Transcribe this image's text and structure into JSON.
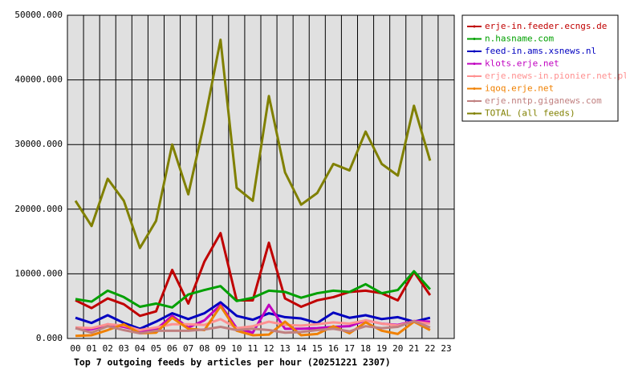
{
  "chart_data": {
    "type": "line",
    "title": "Top 7 outgoing feeds by articles per hour (20251221 2307)",
    "categories": [
      "00",
      "01",
      "02",
      "03",
      "04",
      "05",
      "06",
      "07",
      "08",
      "09",
      "10",
      "11",
      "12",
      "13",
      "14",
      "15",
      "16",
      "17",
      "18",
      "19",
      "20",
      "21",
      "22",
      "23"
    ],
    "ylim": [
      0,
      50000
    ],
    "yticks": [
      {
        "value": 0,
        "label": "0.000"
      },
      {
        "value": 10000,
        "label": "10000.000"
      },
      {
        "value": 20000,
        "label": "20000.000"
      },
      {
        "value": 30000,
        "label": "30000.000"
      },
      {
        "value": 40000,
        "label": "40000.000"
      },
      {
        "value": 50000,
        "label": "50000.000"
      }
    ],
    "grid": true,
    "legend": "right",
    "series": [
      {
        "name": "erje-in.feeder.ecngs.de",
        "color": "#c00000",
        "values": [
          5900,
          4700,
          6200,
          5300,
          3500,
          4200,
          10600,
          5400,
          11900,
          16300,
          5900,
          5900,
          14800,
          6200,
          4900,
          5900,
          6400,
          7200,
          7400,
          7000,
          5900,
          10300,
          6700,
          null
        ]
      },
      {
        "name": "n.hasname.com",
        "color": "#00a000",
        "values": [
          6100,
          5700,
          7400,
          6400,
          4900,
          5400,
          4800,
          6800,
          7500,
          8100,
          5800,
          6300,
          7400,
          7200,
          6300,
          7000,
          7400,
          7200,
          8400,
          7000,
          7500,
          10400,
          7600,
          null
        ]
      },
      {
        "name": "feed-in.ams.xsnews.nl",
        "color": "#0000c0",
        "values": [
          3200,
          2400,
          3600,
          2400,
          1500,
          2600,
          3900,
          3000,
          3900,
          5600,
          3500,
          2900,
          3900,
          3300,
          3100,
          2400,
          4000,
          3200,
          3600,
          3000,
          3300,
          2600,
          3200,
          null
        ]
      },
      {
        "name": "klots.erje.net",
        "color": "#c000c0",
        "values": [
          1600,
          1400,
          2200,
          1800,
          1200,
          1400,
          3500,
          1700,
          2800,
          5200,
          1600,
          900,
          5200,
          1500,
          1500,
          1600,
          1800,
          1900,
          2800,
          2300,
          2100,
          2700,
          2600,
          null
        ]
      },
      {
        "name": "erje.news-in.pionier.net.pl",
        "color": "#ff9090",
        "values": [
          1700,
          1600,
          2200,
          2000,
          1300,
          1700,
          2200,
          2200,
          2100,
          3000,
          1600,
          1900,
          2600,
          2100,
          2000,
          2200,
          2500,
          2300,
          2800,
          2300,
          2000,
          2600,
          2300,
          null
        ]
      },
      {
        "name": "iqoq.erje.net",
        "color": "#f08000",
        "values": [
          400,
          500,
          1300,
          2200,
          800,
          900,
          3200,
          1500,
          1300,
          5000,
          1200,
          500,
          600,
          2600,
          500,
          700,
          1900,
          800,
          2500,
          1200,
          700,
          2600,
          1300,
          null
        ]
      },
      {
        "name": "erje.nntp.giganews.com",
        "color": "#c08080",
        "values": [
          1600,
          900,
          1900,
          1300,
          800,
          1200,
          1200,
          1200,
          1400,
          1800,
          1300,
          1500,
          1300,
          900,
          1000,
          1300,
          1500,
          1100,
          1900,
          1600,
          1800,
          2700,
          1700,
          null
        ]
      },
      {
        "name": "TOTAL (all feeds)",
        "color": "#808000",
        "values": [
          21300,
          17400,
          24700,
          21300,
          14000,
          18200,
          30000,
          22300,
          33500,
          46200,
          23300,
          21300,
          37500,
          25700,
          20700,
          22500,
          27000,
          26000,
          32000,
          27000,
          25200,
          36000,
          27500,
          null
        ]
      }
    ]
  }
}
